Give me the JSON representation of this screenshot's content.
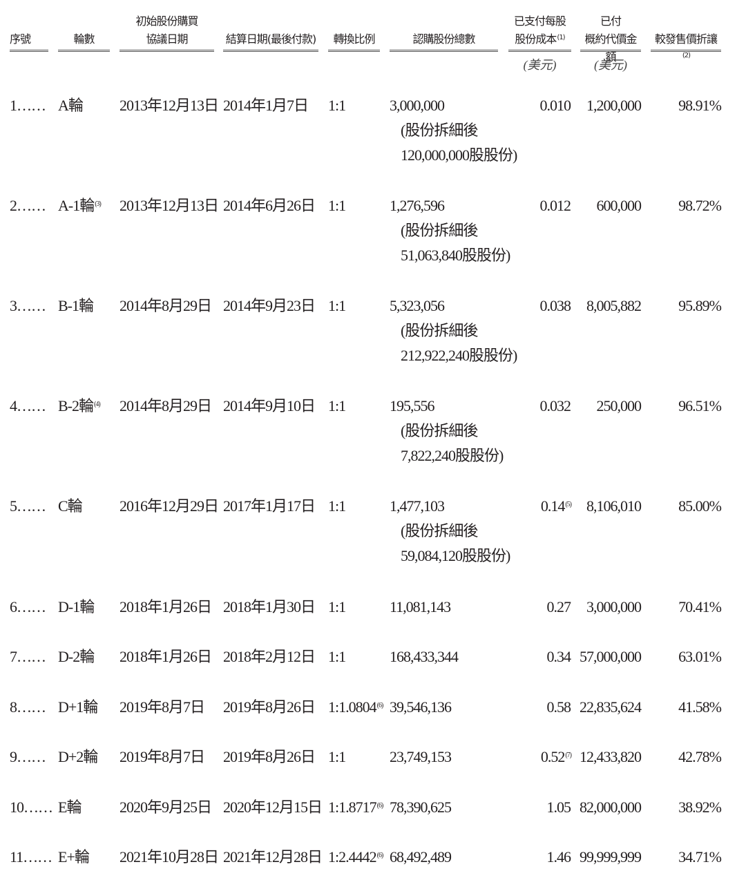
{
  "header": {
    "seq": "序號",
    "round": "輪數",
    "date1_l1": "初始股份購買",
    "date1_l2": "協議日期",
    "date2": "結算日期(最後付款)",
    "ratio": "轉換比例",
    "shares": "認購股份總數",
    "cost_l1": "已支付每股",
    "cost_l2": "股份成本",
    "cost_note": "(1)",
    "amount_l1": "已付",
    "amount_l2": "概約代價金額",
    "discount": "較發售價折讓",
    "discount_note": "(2)",
    "unit_usd": "(美元)"
  },
  "rows": [
    {
      "seq": "1……",
      "round": "A輪",
      "round_note": "",
      "date1": "2013年12月13日",
      "date2": "2014年1月7日",
      "ratio": "1:1",
      "ratio_note": "",
      "shares": "3,000,000",
      "split1": "(股份拆細後",
      "split2": "120,000,000股股份)",
      "cost": "0.010",
      "cost_note": "",
      "amount": "1,200,000",
      "discount": "98.91%"
    },
    {
      "seq": "2……",
      "round": "A-1輪",
      "round_note": "(3)",
      "date1": "2013年12月13日",
      "date2": "2014年6月26日",
      "ratio": "1:1",
      "ratio_note": "",
      "shares": "1,276,596",
      "split1": "(股份拆細後",
      "split2": "51,063,840股股份)",
      "cost": "0.012",
      "cost_note": "",
      "amount": "600,000",
      "discount": "98.72%"
    },
    {
      "seq": "3……",
      "round": "B-1輪",
      "round_note": "",
      "date1": "2014年8月29日",
      "date2": "2014年9月23日",
      "ratio": "1:1",
      "ratio_note": "",
      "shares": "5,323,056",
      "split1": "(股份拆細後",
      "split2": "212,922,240股股份)",
      "cost": "0.038",
      "cost_note": "",
      "amount": "8,005,882",
      "discount": "95.89%"
    },
    {
      "seq": "4……",
      "round": "B-2輪",
      "round_note": "(4)",
      "date1": "2014年8月29日",
      "date2": "2014年9月10日",
      "ratio": "1:1",
      "ratio_note": "",
      "shares": "195,556",
      "split1": "(股份拆細後",
      "split2": "7,822,240股股份)",
      "cost": "0.032",
      "cost_note": "",
      "amount": "250,000",
      "discount": "96.51%"
    },
    {
      "seq": "5……",
      "round": "C輪",
      "round_note": "",
      "date1": "2016年12月29日",
      "date2": "2017年1月17日",
      "ratio": "1:1",
      "ratio_note": "",
      "shares": "1,477,103",
      "split1": "(股份拆細後",
      "split2": "59,084,120股股份)",
      "cost": "0.14",
      "cost_note": "(5)",
      "amount": "8,106,010",
      "discount": "85.00%"
    },
    {
      "seq": "6……",
      "round": "D-1輪",
      "round_note": "",
      "date1": "2018年1月26日",
      "date2": "2018年1月30日",
      "ratio": "1:1",
      "ratio_note": "",
      "shares": "11,081,143",
      "split1": "",
      "split2": "",
      "cost": "0.27",
      "cost_note": "",
      "amount": "3,000,000",
      "discount": "70.41%"
    },
    {
      "seq": "7……",
      "round": "D-2輪",
      "round_note": "",
      "date1": "2018年1月26日",
      "date2": "2018年2月12日",
      "ratio": "1:1",
      "ratio_note": "",
      "shares": "168,433,344",
      "split1": "",
      "split2": "",
      "cost": "0.34",
      "cost_note": "",
      "amount": "57,000,000",
      "discount": "63.01%"
    },
    {
      "seq": "8……",
      "round": "D+1輪",
      "round_note": "",
      "date1": "2019年8月7日",
      "date2": "2019年8月26日",
      "ratio": "1:1.0804",
      "ratio_note": "(6)",
      "shares": "39,546,136",
      "split1": "",
      "split2": "",
      "cost": "0.58",
      "cost_note": "",
      "amount": "22,835,624",
      "discount": "41.58%"
    },
    {
      "seq": "9……",
      "round": "D+2輪",
      "round_note": "",
      "date1": "2019年8月7日",
      "date2": "2019年8月26日",
      "ratio": "1:1",
      "ratio_note": "",
      "shares": "23,749,153",
      "split1": "",
      "split2": "",
      "cost": "0.52",
      "cost_note": "(7)",
      "amount": "12,433,820",
      "discount": "42.78%"
    },
    {
      "seq": "10……",
      "round": "E輪",
      "round_note": "",
      "date1": "2020年9月25日",
      "date2": "2020年12月15日",
      "ratio": "1:1.8717",
      "ratio_note": "(6)",
      "shares": "78,390,625",
      "split1": "",
      "split2": "",
      "cost": "1.05",
      "cost_note": "",
      "amount": "82,000,000",
      "discount": "38.92%"
    },
    {
      "seq": "11……",
      "round": "E+輪",
      "round_note": "",
      "date1": "2021年10月28日",
      "date2": "2021年12月28日",
      "ratio": "1:2.4442",
      "ratio_note": "(6)",
      "shares": "68,492,489",
      "split1": "",
      "split2": "",
      "cost": "1.46",
      "cost_note": "",
      "amount": "99,999,999",
      "discount": "34.71%"
    }
  ]
}
